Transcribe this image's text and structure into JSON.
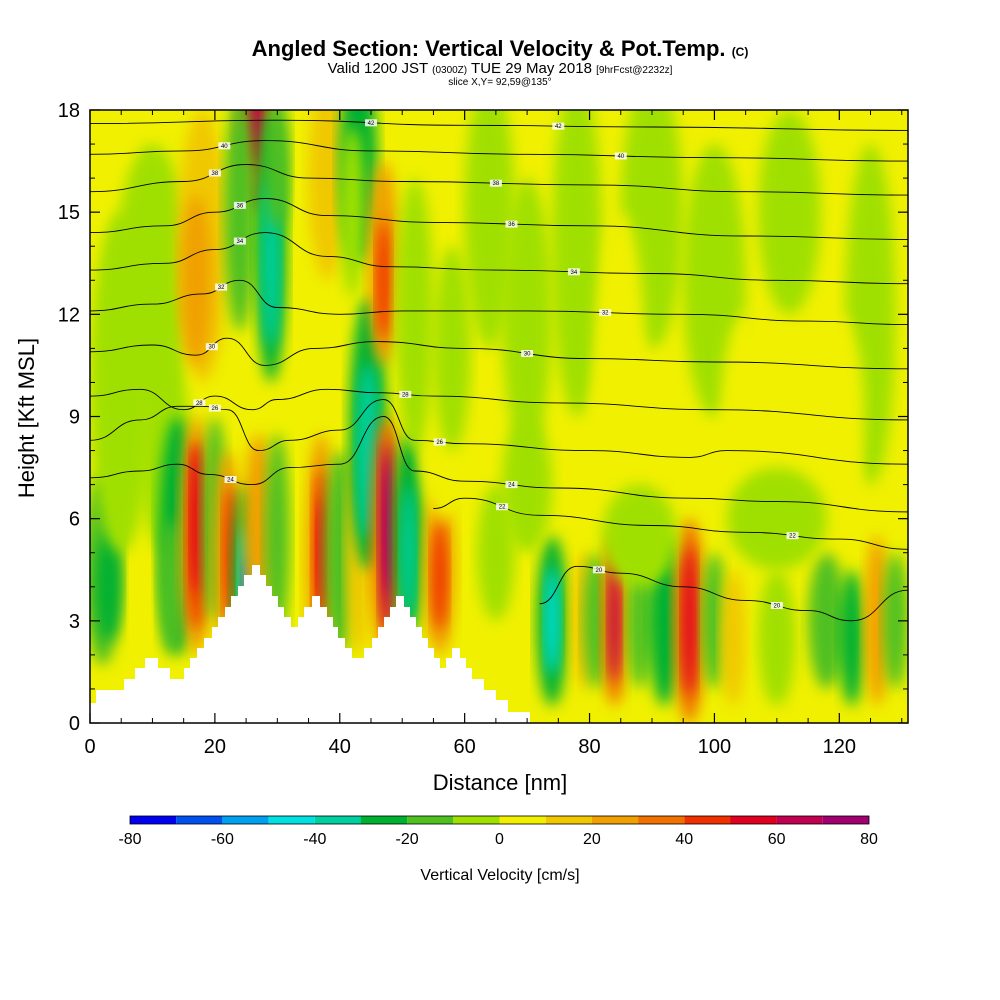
{
  "header": {
    "title_main": "Angled Section: Vertical Velocity & Pot.Temp.",
    "title_unit": "(C)",
    "valid_prefix": "Valid 1200 JST",
    "valid_utc": "(0300Z)",
    "valid_date": "TUE 29 May 2018",
    "valid_fcst": "[9hrFcst@2232z]",
    "slice": "slice X,Y= 92,59@135°"
  },
  "chart_data": {
    "type": "heatmap",
    "xlabel": "Distance [nm]",
    "ylabel": "Height [Kft MSL]",
    "xlim": [
      0,
      131
    ],
    "ylim": [
      0,
      18
    ],
    "x_ticks": [
      0,
      20,
      40,
      60,
      80,
      100,
      120
    ],
    "y_ticks": [
      0,
      3,
      6,
      9,
      12,
      15,
      18
    ],
    "colorbar": {
      "title": "Vertical Velocity [cm/s]",
      "levels": [
        -80,
        -70,
        -60,
        -50,
        -40,
        -30,
        -20,
        -10,
        0,
        10,
        20,
        30,
        40,
        50,
        60,
        70,
        80
      ],
      "labels": [
        -80,
        -60,
        -40,
        -20,
        0,
        20,
        40,
        60,
        80
      ],
      "colors": [
        "#0000f0",
        "#0050f0",
        "#00a0f0",
        "#00e0e0",
        "#00d0a0",
        "#00b030",
        "#50c020",
        "#a0e000",
        "#f0f000",
        "#f0c800",
        "#f0a000",
        "#f07000",
        "#f03000",
        "#e00020",
        "#c00050",
        "#a00070",
        "#600080"
      ]
    },
    "theta_contours": {
      "interval_c": 2,
      "lines": [
        {
          "label": "42",
          "pts": [
            [
              0,
              17.6
            ],
            [
              30,
              17.7
            ],
            [
              60,
              17.55
            ],
            [
              90,
              17.5
            ],
            [
              131,
              17.4
            ]
          ]
        },
        {
          "label": "40",
          "pts": [
            [
              0,
              16.7
            ],
            [
              15,
              16.8
            ],
            [
              28,
              17.1
            ],
            [
              45,
              16.8
            ],
            [
              70,
              16.7
            ],
            [
              100,
              16.6
            ],
            [
              131,
              16.5
            ]
          ]
        },
        {
          "label": "38",
          "pts": [
            [
              0,
              15.6
            ],
            [
              15,
              15.9
            ],
            [
              25,
              16.4
            ],
            [
              35,
              16.0
            ],
            [
              50,
              15.9
            ],
            [
              80,
              15.8
            ],
            [
              105,
              15.6
            ],
            [
              131,
              15.5
            ]
          ]
        },
        {
          "label": "36",
          "pts": [
            [
              0,
              14.4
            ],
            [
              12,
              14.6
            ],
            [
              20,
              15.0
            ],
            [
              28,
              15.4
            ],
            [
              38,
              14.9
            ],
            [
              55,
              14.7
            ],
            [
              80,
              14.6
            ],
            [
              105,
              14.3
            ],
            [
              131,
              14.2
            ]
          ]
        },
        {
          "label": "34",
          "pts": [
            [
              0,
              13.3
            ],
            [
              12,
              13.5
            ],
            [
              20,
              13.9
            ],
            [
              28,
              14.4
            ],
            [
              38,
              13.7
            ],
            [
              48,
              13.4
            ],
            [
              65,
              13.3
            ],
            [
              90,
              13.2
            ],
            [
              110,
              13.0
            ],
            [
              131,
              12.9
            ]
          ]
        },
        {
          "label": "32",
          "pts": [
            [
              0,
              12.1
            ],
            [
              10,
              12.3
            ],
            [
              18,
              12.6
            ],
            [
              24,
              13.0
            ],
            [
              30,
              12.2
            ],
            [
              40,
              12.0
            ],
            [
              50,
              12.1
            ],
            [
              70,
              12.1
            ],
            [
              95,
              12.0
            ],
            [
              115,
              11.8
            ],
            [
              131,
              11.7
            ]
          ]
        },
        {
          "label": "30",
          "pts": [
            [
              0,
              10.9
            ],
            [
              10,
              11.1
            ],
            [
              17,
              10.8
            ],
            [
              22,
              11.3
            ],
            [
              28,
              10.5
            ],
            [
              36,
              11.0
            ],
            [
              46,
              11.2
            ],
            [
              60,
              11.0
            ],
            [
              80,
              10.7
            ],
            [
              100,
              10.6
            ],
            [
              131,
              10.4
            ]
          ]
        },
        {
          "label": "28",
          "pts": [
            [
              0,
              9.6
            ],
            [
              8,
              9.8
            ],
            [
              15,
              9.2
            ],
            [
              20,
              9.6
            ],
            [
              26,
              9.2
            ],
            [
              30,
              9.5
            ],
            [
              38,
              9.8
            ],
            [
              46,
              9.7
            ],
            [
              55,
              9.6
            ],
            [
              75,
              9.4
            ],
            [
              100,
              9.2
            ],
            [
              131,
              8.9
            ]
          ]
        },
        {
          "label": "26",
          "pts": [
            [
              0,
              8.3
            ],
            [
              8,
              8.9
            ],
            [
              14,
              9.3
            ],
            [
              18,
              9.3
            ],
            [
              22,
              9.2
            ],
            [
              27,
              8.0
            ],
            [
              32,
              8.3
            ],
            [
              40,
              8.6
            ],
            [
              47,
              9.5
            ],
            [
              52,
              8.3
            ],
            [
              60,
              8.2
            ],
            [
              80,
              8.0
            ],
            [
              96,
              7.8
            ],
            [
              102,
              8.0
            ],
            [
              131,
              7.6
            ]
          ]
        },
        {
          "label": "24",
          "pts": [
            [
              0,
              7.2
            ],
            [
              8,
              7.4
            ],
            [
              14,
              7.6
            ],
            [
              19,
              7.3
            ],
            [
              26,
              7.0
            ],
            [
              32,
              7.5
            ],
            [
              40,
              7.6
            ],
            [
              47,
              9.0
            ],
            [
              52,
              7.4
            ],
            [
              60,
              7.1
            ],
            [
              75,
              6.9
            ],
            [
              96,
              6.6
            ],
            [
              110,
              6.5
            ],
            [
              131,
              6.2
            ]
          ]
        },
        {
          "label": "22",
          "pts": [
            [
              55,
              6.3
            ],
            [
              60,
              6.6
            ],
            [
              72,
              6.1
            ],
            [
              90,
              5.8
            ],
            [
              105,
              5.6
            ],
            [
              120,
              5.4
            ],
            [
              131,
              5.1
            ]
          ]
        },
        {
          "label": "20",
          "pts": [
            [
              72,
              3.5
            ],
            [
              78,
              4.6
            ],
            [
              85,
              4.4
            ],
            [
              95,
              4.0
            ],
            [
              105,
              3.6
            ],
            [
              115,
              3.3
            ],
            [
              122,
              3.0
            ],
            [
              131,
              3.9
            ]
          ]
        }
      ]
    }
  }
}
